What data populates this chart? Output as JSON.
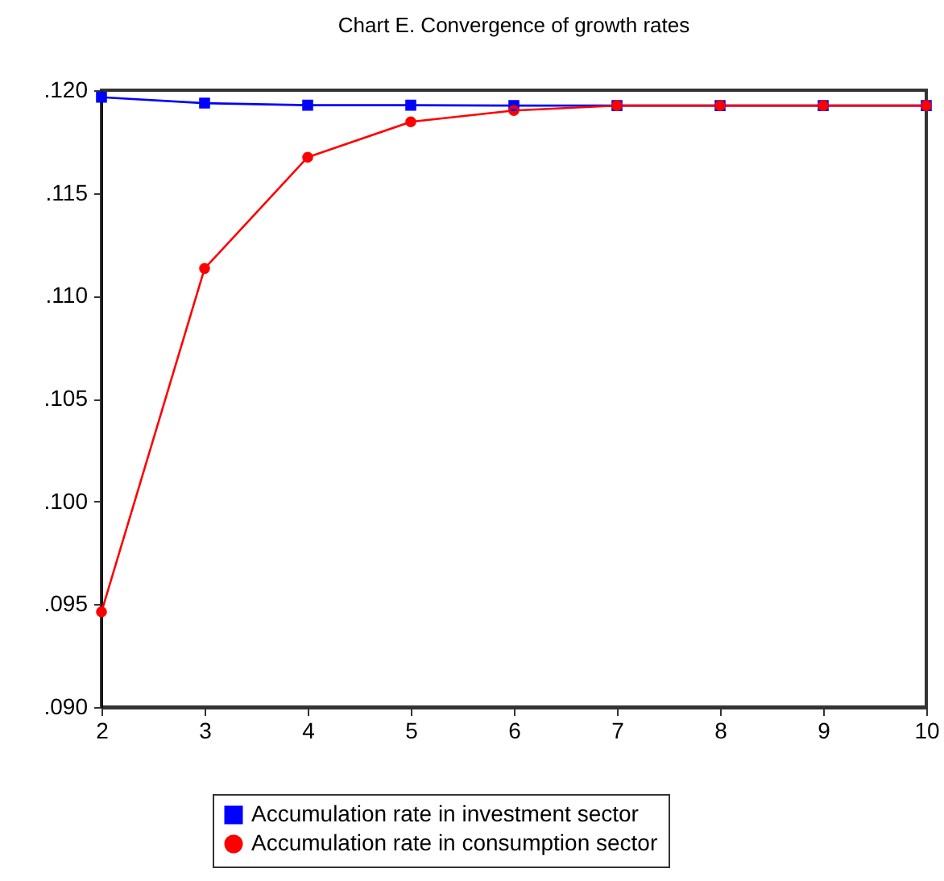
{
  "chart_data": {
    "type": "line",
    "title": "Chart E. Convergence of growth rates",
    "x": [
      2,
      3,
      4,
      5,
      6,
      7,
      8,
      9,
      10
    ],
    "series": [
      {
        "name": "Accumulation rate in investment sector",
        "color": "#0000ff",
        "marker": "square",
        "values": [
          0.11966,
          0.11937,
          0.11927,
          0.11927,
          0.11925,
          0.11925,
          0.11925,
          0.11925,
          0.11925
        ]
      },
      {
        "name": "Accumulation rate in consumption sector",
        "color": "#ff0000",
        "marker": "circle",
        "values": [
          0.09463,
          0.11133,
          0.11674,
          0.11846,
          0.11901,
          0.11925,
          0.11925,
          0.11925,
          0.11925
        ]
      }
    ],
    "xlim": [
      2,
      10
    ],
    "xticks": [
      2,
      3,
      4,
      5,
      6,
      7,
      8,
      9,
      10
    ],
    "ylim": [
      0.09,
      0.12
    ],
    "yticks": [
      {
        "value": 0.09,
        "label": ".090"
      },
      {
        "value": 0.095,
        "label": ".095"
      },
      {
        "value": 0.1,
        "label": ".100"
      },
      {
        "value": 0.105,
        "label": ".105"
      },
      {
        "value": 0.11,
        "label": ".110"
      },
      {
        "value": 0.115,
        "label": ".115"
      },
      {
        "value": 0.12,
        "label": ".120"
      }
    ],
    "grid": false,
    "legend": "bottom"
  }
}
